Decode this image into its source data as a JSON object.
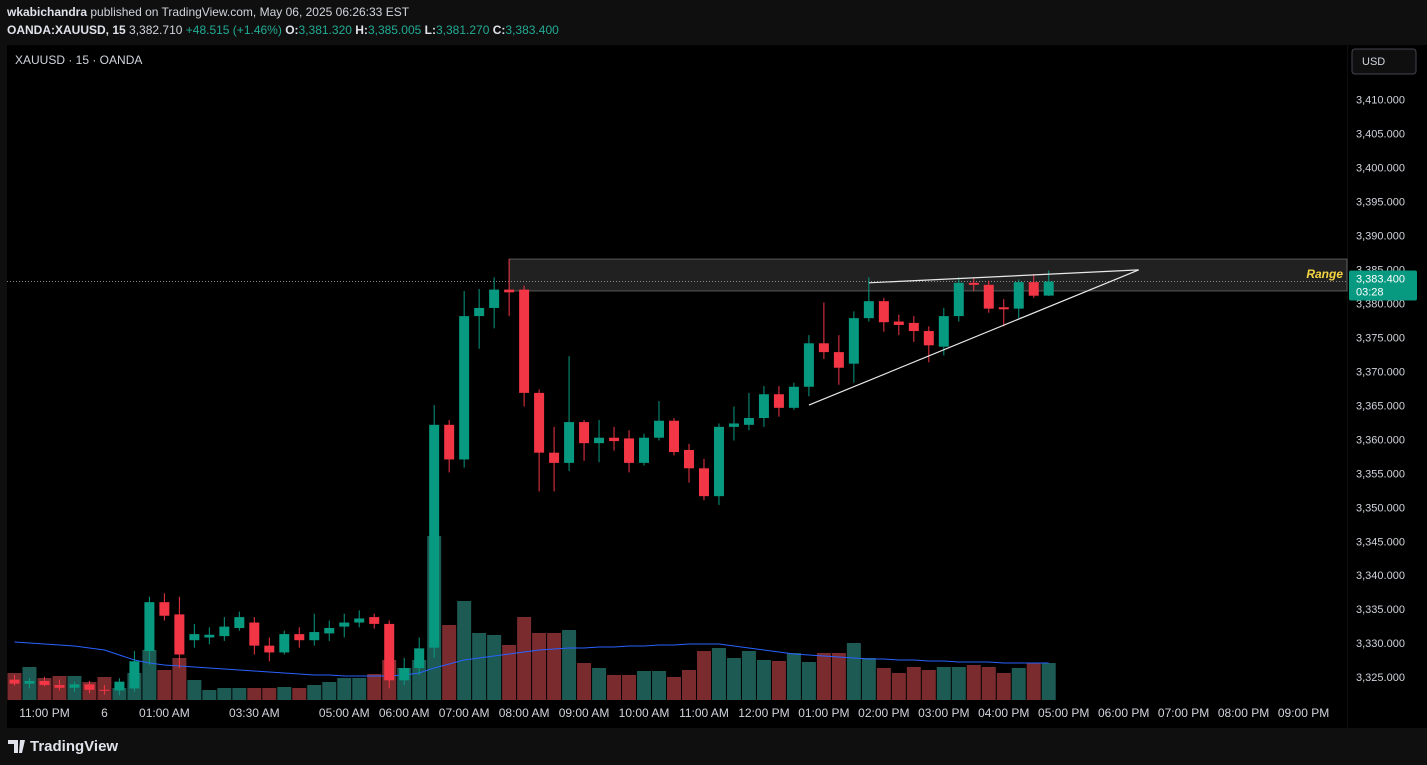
{
  "header": {
    "author": "wkabichandra",
    "published": "published on TradingView.com, May 06, 2025 06:26:33 EST",
    "symbol": "OANDA:XAUUSD, 15",
    "price": "3,382.710",
    "change": "+48.515 (+1.46%)",
    "o_label": "O:",
    "o": "3,381.320",
    "h_label": "H:",
    "h": "3,385.005",
    "l_label": "L:",
    "l": "3,381.270",
    "c_label": "C:",
    "c": "3,383.400"
  },
  "currency_button": "USD",
  "footer": {
    "logo": "TradingView"
  },
  "chart_data": {
    "type": "candlestick",
    "title": "XAUUSD · 15 · OANDA",
    "up_color": "#089981",
    "down_color": "#f23645",
    "volume_up_color": "#1c5a53",
    "volume_down_color": "#7a2b2e",
    "ma_color": "#2962ff",
    "open": [
      3324.8,
      3324.2,
      3324.6,
      3324.0,
      3323.6,
      3324.1,
      3323.3,
      3323.2,
      3323.5,
      3329,
      3336.2,
      3334.4,
      3330.6,
      3331,
      3331.2,
      3332.4,
      3333.2,
      3329.8,
      3328.8,
      3331.5,
      3330.6,
      3331.6,
      3332.6,
      3333.2,
      3334,
      3333,
      3324.7,
      3326.5,
      3329.5,
      3362.3,
      3357.2,
      3378.3,
      3379.5,
      3382.2,
      3382.2,
      3367,
      3358.2,
      3356.7,
      3362.7,
      3359.6,
      3360.4,
      3360.3,
      3356.7,
      3360.4,
      3362.9,
      3358.6,
      3355.9,
      3351.8,
      3362,
      3362.3,
      3363.3,
      3366.8,
      3364.8,
      3367.9,
      3374.3,
      3373,
      3371.3,
      3378,
      3380.5,
      3377.5,
      3377.3,
      3376.1,
      3373.8,
      3378.3,
      3383.2,
      3382.9,
      3379.6,
      3379.4,
      3383.3,
      3381.32
    ],
    "high": [
      3325.5,
      3325,
      3325.2,
      3324.8,
      3324.5,
      3324.6,
      3324.0,
      3325,
      3329,
      3337,
      3337.5,
      3337,
      3333,
      3332.5,
      3334,
      3334.8,
      3334,
      3331,
      3332,
      3332.5,
      3334.5,
      3333.5,
      3334.5,
      3335,
      3334.5,
      3333.5,
      3328,
      3331,
      3365.2,
      3363,
      3382,
      3382.3,
      3384,
      3386.7,
      3382.8,
      3367.5,
      3362,
      3372.4,
      3363,
      3363,
      3362,
      3361.5,
      3361,
      3365.8,
      3363.3,
      3359.5,
      3357.3,
      3362.5,
      3365,
      3367,
      3368,
      3368,
      3368.5,
      3375.5,
      3380.3,
      3375.5,
      3379,
      3384,
      3381,
      3378.5,
      3378.3,
      3376.8,
      3379.5,
      3384,
      3384,
      3383.5,
      3380.8,
      3383.7,
      3384.5,
      3385.005
    ],
    "low": [
      3323.9,
      3323.5,
      3323.8,
      3323.2,
      3323.0,
      3322.8,
      3322.6,
      3322.5,
      3323,
      3327,
      3333.5,
      3326.5,
      3329.5,
      3330,
      3330.5,
      3332,
      3328.5,
      3327.5,
      3328.5,
      3329.5,
      3329.8,
      3330.5,
      3331,
      3332.5,
      3332.3,
      3323.5,
      3324,
      3325.5,
      3328,
      3355.3,
      3356,
      3373.5,
      3376.5,
      3378.3,
      3365,
      3352.5,
      3352.5,
      3355.5,
      3357,
      3356.8,
      3358.5,
      3355.3,
      3356.3,
      3360,
      3357.8,
      3353.8,
      3351.2,
      3350.5,
      3360,
      3361.5,
      3362,
      3363.5,
      3364.5,
      3366.5,
      3372,
      3368.2,
      3368.5,
      3377.5,
      3376,
      3375.5,
      3374.5,
      3371.5,
      3372.5,
      3377.5,
      3382,
      3378.8,
      3376.8,
      3378,
      3381,
      3381.27
    ],
    "close": [
      3324.2,
      3324.6,
      3324.0,
      3323.6,
      3324.1,
      3323.3,
      3323.2,
      3324.5,
      3327.5,
      3336.2,
      3334.2,
      3328.5,
      3331.5,
      3331.4,
      3332.6,
      3334,
      3329.8,
      3328.8,
      3331.5,
      3330.6,
      3331.8,
      3332.4,
      3333.2,
      3333.8,
      3333,
      3324.7,
      3326.5,
      3329.4,
      3362.3,
      3357.2,
      3378.3,
      3379.5,
      3382.2,
      3381.8,
      3367,
      3358.2,
      3356.7,
      3362.7,
      3359.6,
      3360.4,
      3359.9,
      3356.7,
      3360.4,
      3362.9,
      3358.3,
      3355.9,
      3351.8,
      3362,
      3362.5,
      3363.3,
      3366.8,
      3364.8,
      3367.9,
      3374.3,
      3373,
      3370.7,
      3378,
      3380.5,
      3377.4,
      3377,
      3376.1,
      3374,
      3378.3,
      3383.2,
      3382.9,
      3379.4,
      3379.3,
      3383.3,
      3381.3,
      3383.4
    ],
    "volume": [
      27,
      33,
      22,
      24,
      24,
      18,
      23,
      12,
      27,
      50,
      30,
      42,
      20,
      10,
      12,
      12,
      12,
      12,
      13,
      12,
      15,
      18,
      22,
      22,
      26,
      40,
      32,
      40,
      164,
      75,
      99,
      67,
      65,
      55,
      83,
      67,
      67,
      70,
      37,
      32,
      25,
      25,
      29,
      29,
      23,
      30,
      49,
      52,
      42,
      49,
      40,
      39,
      47,
      38,
      47,
      47,
      57,
      42,
      32,
      27,
      33,
      30,
      33,
      33,
      35,
      33,
      27,
      32,
      37,
      37
    ],
    "volume_ma": [
      58,
      57,
      56,
      55,
      54,
      52,
      50,
      45,
      40,
      37,
      35,
      34,
      33,
      32,
      31,
      30,
      29,
      28,
      27,
      26,
      25,
      25,
      24,
      24,
      24,
      24,
      25,
      27,
      32,
      36,
      40,
      42,
      44,
      46,
      48,
      50,
      51,
      52,
      52,
      53,
      53,
      54,
      54,
      55,
      55,
      56,
      56,
      56,
      54,
      52,
      50,
      48,
      46,
      45,
      44,
      43,
      42,
      41,
      41,
      40,
      40,
      39,
      39,
      38,
      38,
      38,
      37,
      37,
      37,
      37
    ],
    "xlim": [
      -0.5,
      88.9
    ],
    "xticks": [
      {
        "value": 2,
        "label": "11:00 PM"
      },
      {
        "value": 6,
        "label": "6"
      },
      {
        "value": 10,
        "label": "01:00 AM"
      },
      {
        "value": 16,
        "label": "03:30 AM"
      },
      {
        "value": 22,
        "label": "05:00 AM"
      },
      {
        "value": 26,
        "label": "06:00 AM"
      },
      {
        "value": 30,
        "label": "07:00 AM"
      },
      {
        "value": 34,
        "label": "08:00 AM"
      },
      {
        "value": 38,
        "label": "09:00 AM"
      },
      {
        "value": 42,
        "label": "10:00 AM"
      },
      {
        "value": 46,
        "label": "11:00 AM"
      },
      {
        "value": 50,
        "label": "12:00 PM"
      },
      {
        "value": 54,
        "label": "01:00 PM"
      },
      {
        "value": 58,
        "label": "02:00 PM"
      },
      {
        "value": 62,
        "label": "03:00 PM"
      },
      {
        "value": 66,
        "label": "04:00 PM"
      },
      {
        "value": 70,
        "label": "05:00 PM"
      },
      {
        "value": 74,
        "label": "06:00 PM"
      },
      {
        "value": 78,
        "label": "07:00 PM"
      },
      {
        "value": 82,
        "label": "08:00 PM"
      },
      {
        "value": 86,
        "label": "09:00 PM"
      }
    ],
    "ylim": [
      3321.8,
      3418.2
    ],
    "yticks": [
      {
        "value": 3325,
        "label": "3,325.000"
      },
      {
        "value": 3330,
        "label": "3,330.000"
      },
      {
        "value": 3335,
        "label": "3,335.000"
      },
      {
        "value": 3340,
        "label": "3,340.000"
      },
      {
        "value": 3345,
        "label": "3,345.000"
      },
      {
        "value": 3350,
        "label": "3,350.000"
      },
      {
        "value": 3355,
        "label": "3,355.000"
      },
      {
        "value": 3360,
        "label": "3,360.000"
      },
      {
        "value": 3365,
        "label": "3,365.000"
      },
      {
        "value": 3370,
        "label": "3,370.000"
      },
      {
        "value": 3375,
        "label": "3,375.000"
      },
      {
        "value": 3380,
        "label": "3,380.000"
      },
      {
        "value": 3385,
        "label": "3,385.000"
      },
      {
        "value": 3390,
        "label": "3,390.000"
      },
      {
        "value": 3395,
        "label": "3,395.000"
      },
      {
        "value": 3400,
        "label": "3,400.000"
      },
      {
        "value": 3405,
        "label": "3,405.000"
      },
      {
        "value": 3410,
        "label": "3,410.000"
      }
    ],
    "grid": false,
    "price_label": {
      "value": 3383.4,
      "label": "3,383.400",
      "countdown": "03:28"
    },
    "range": {
      "label": "Range",
      "start": 33,
      "top": 3386.7,
      "bottom": 3382.0,
      "label_color": "#f5d442"
    },
    "trendlines": [
      {
        "x": [
          57,
          75
        ],
        "y": [
          3383.2,
          3385.1
        ]
      },
      {
        "x": [
          53,
          75
        ],
        "y": [
          3365.2,
          3385.1
        ]
      }
    ]
  }
}
